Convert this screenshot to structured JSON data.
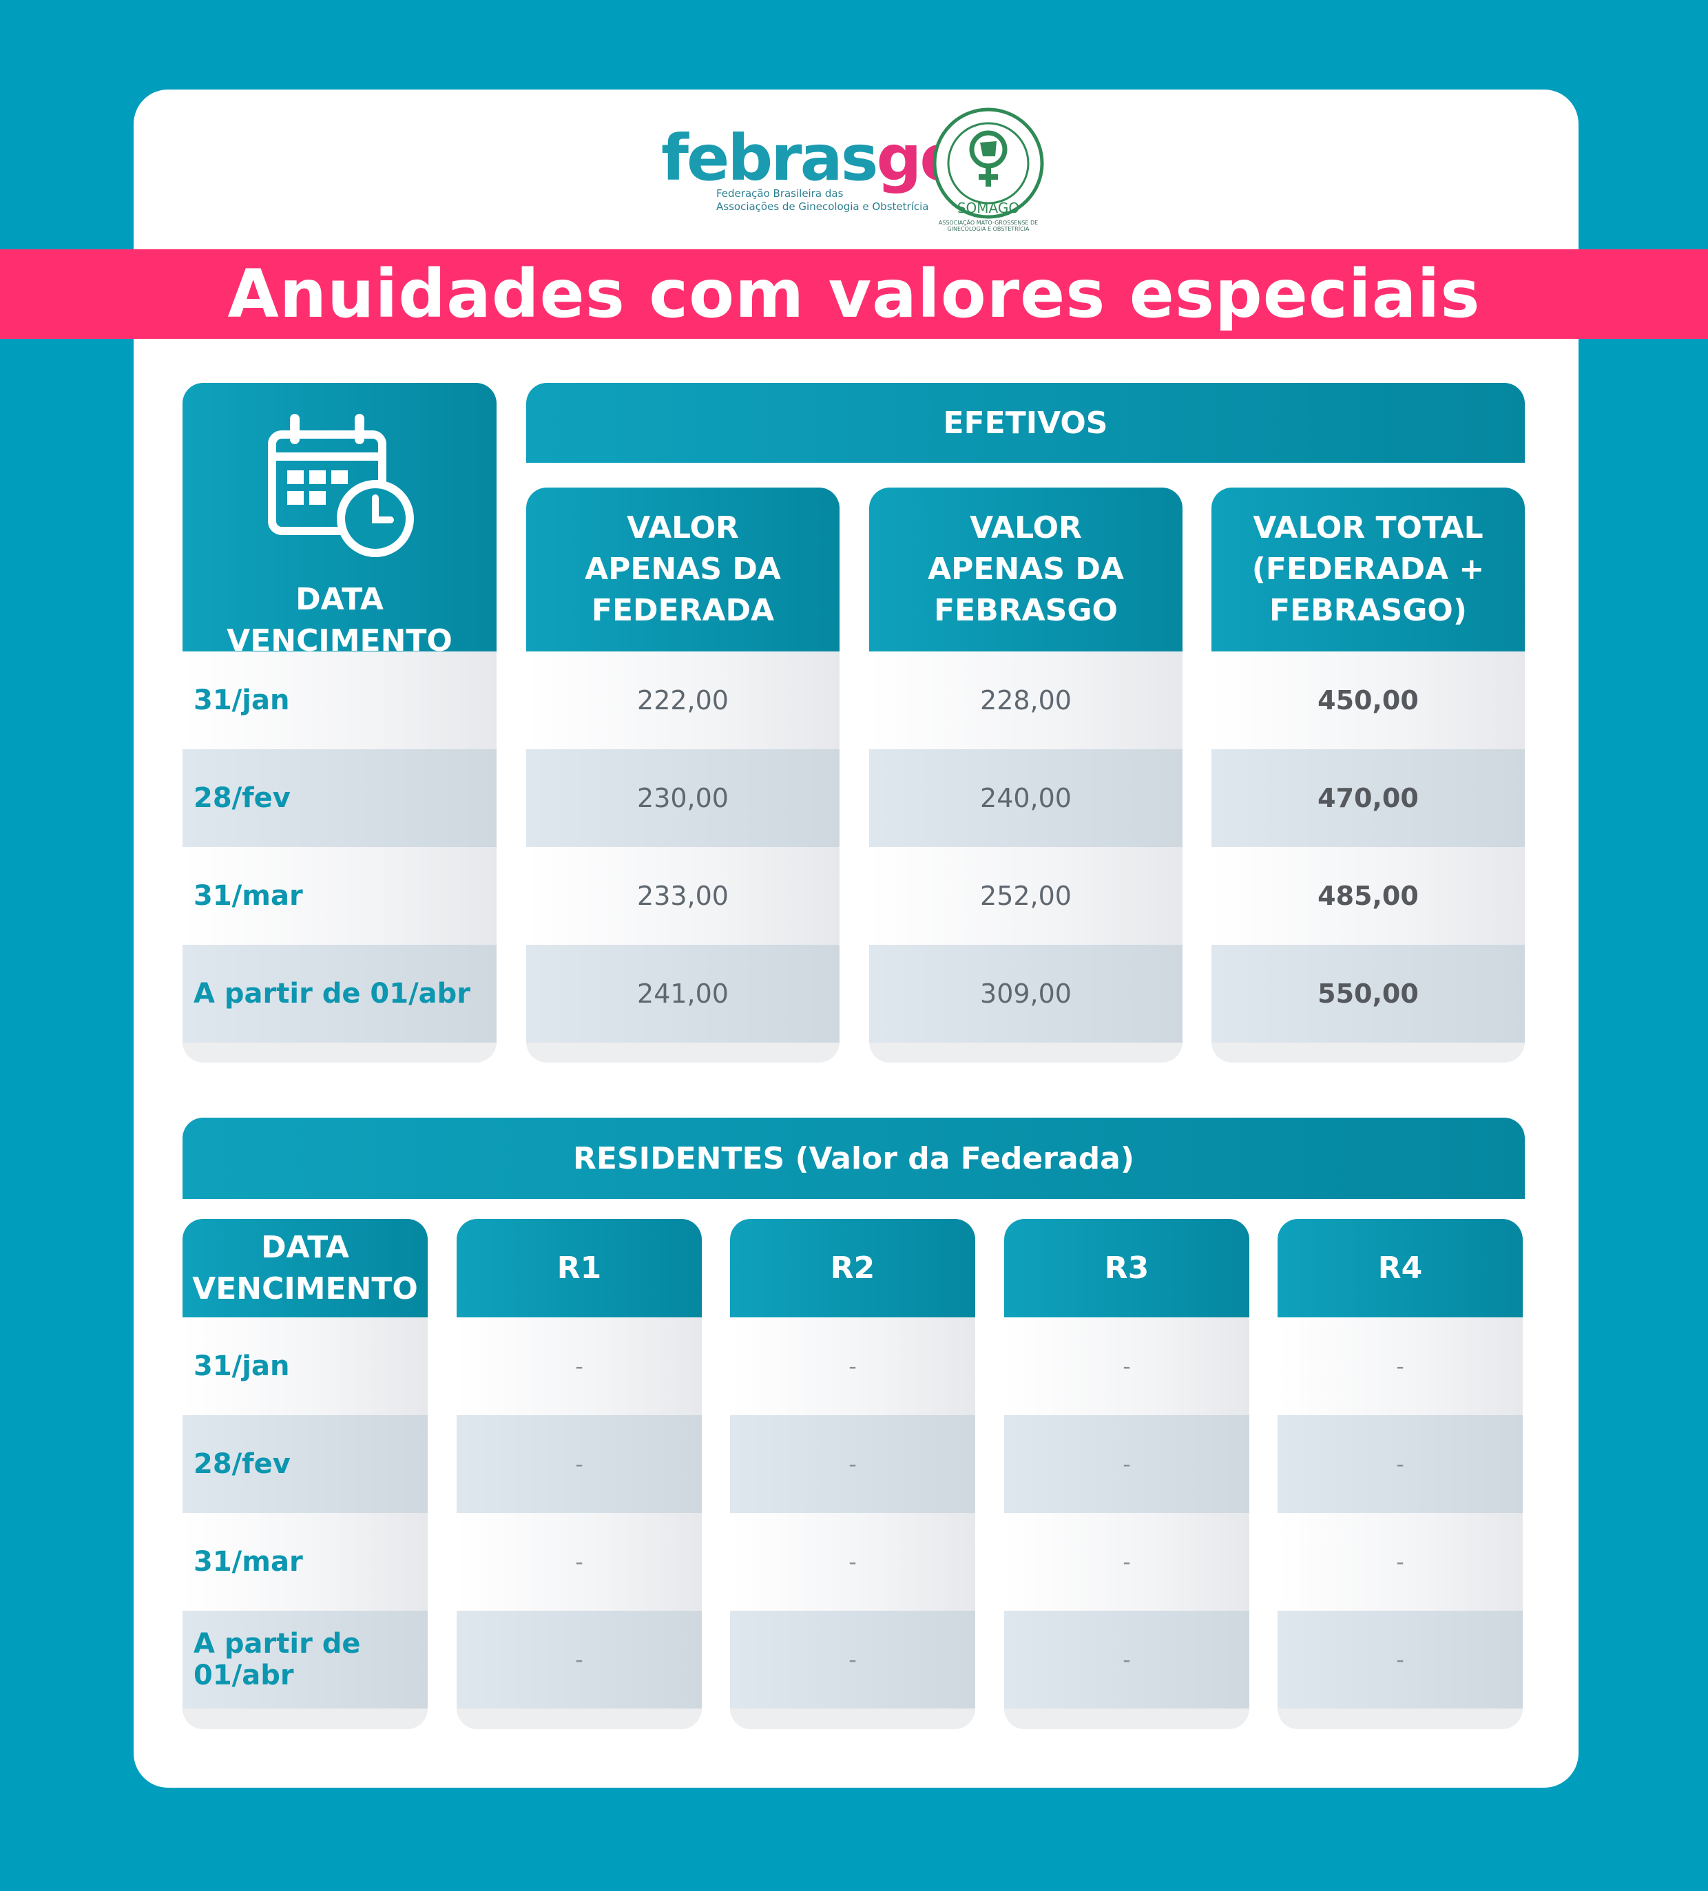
{
  "header": {
    "febrasgo_word_a": "febras",
    "febrasgo_word_b": "go",
    "febrasgo_subtitle": "Federação Brasileira das\nAssociações de Ginecologia e Obstetrícia",
    "somago_ring": "SOMAGO",
    "somago_subtitle": "ASSOCIAÇÃO MATO-GROSSENSE DE GINECOLOGIA E OBSTETRÍCIA",
    "title": "Anuidades com valores especiais"
  },
  "efetivos": {
    "section_title": "EFETIVOS",
    "date_header": "DATA VENCIMENTO",
    "columns": [
      {
        "line1": "VALOR",
        "line2": "APENAS DA",
        "line3": "FEDERADA"
      },
      {
        "line1": "VALOR",
        "line2": "APENAS DA",
        "line3": "FEBRASGO"
      },
      {
        "line1": "VALOR TOTAL",
        "line2": "(FEDERADA +",
        "line3": "FEBRASGO)"
      }
    ],
    "rows": [
      {
        "date": "31/jan",
        "federada": "222,00",
        "febrasgo": "228,00",
        "total": "450,00"
      },
      {
        "date": "28/fev",
        "federada": "230,00",
        "febrasgo": "240,00",
        "total": "470,00"
      },
      {
        "date": "31/mar",
        "federada": "233,00",
        "febrasgo": "252,00",
        "total": "485,00"
      },
      {
        "date": "A partir de 01/abr",
        "federada": "241,00",
        "febrasgo": "309,00",
        "total": "550,00"
      }
    ]
  },
  "residentes": {
    "section_title": "RESIDENTES (Valor da Federada)",
    "date_header_line1": "DATA",
    "date_header_line2": "VENCIMENTO",
    "columns": [
      "R1",
      "R2",
      "R3",
      "R4"
    ],
    "rows": [
      {
        "date": "31/jan",
        "r1": "-",
        "r2": "-",
        "r3": "-",
        "r4": "-"
      },
      {
        "date": "28/fev",
        "r1": "-",
        "r2": "-",
        "r3": "-",
        "r4": "-"
      },
      {
        "date": "31/mar",
        "r1": "-",
        "r2": "-",
        "r3": "-",
        "r4": "-"
      },
      {
        "date": "A partir de 01/abr",
        "r1": "-",
        "r2": "-",
        "r3": "-",
        "r4": "-"
      }
    ]
  },
  "icons": [
    "calendar-clock-icon",
    "febrasgo-logo",
    "somago-seal"
  ],
  "colors": {
    "background": "#009dbd",
    "banner": "#ff2f6f",
    "header": "#0a97b2",
    "date_text": "#0c96b0"
  }
}
